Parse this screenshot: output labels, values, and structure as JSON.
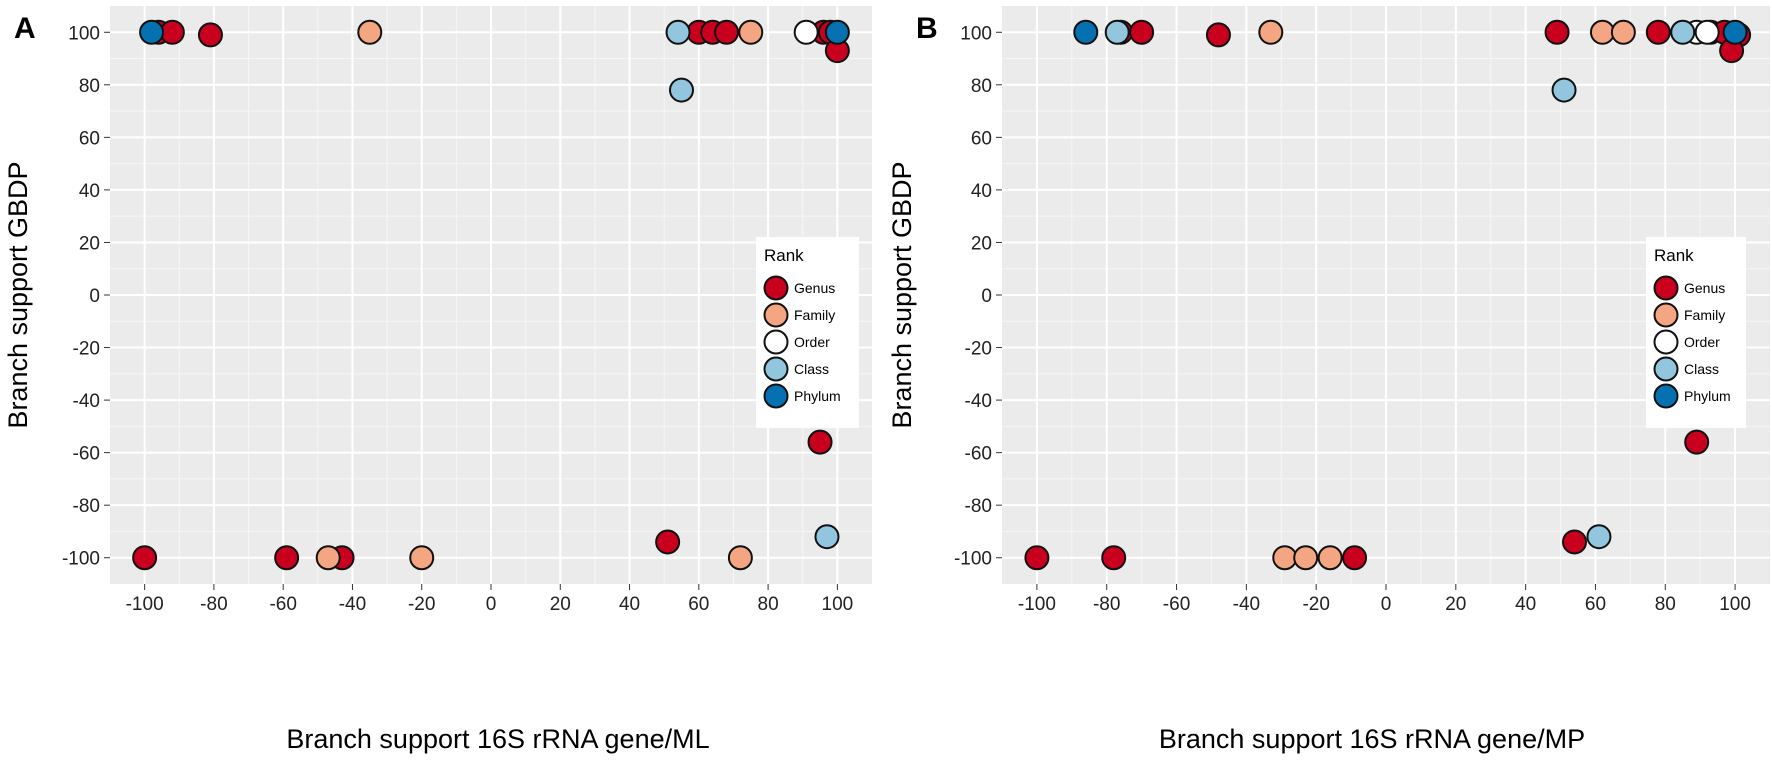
{
  "chart_data": [
    {
      "panel": "A",
      "type": "scatter",
      "xlabel": "Branch support 16S rRNA gene/ML",
      "ylabel": "Branch support GBDP",
      "xlim": [
        -110,
        110
      ],
      "ylim": [
        -110,
        110
      ],
      "x_ticks": [
        -100,
        -80,
        -60,
        -40,
        -20,
        0,
        20,
        40,
        60,
        80,
        100
      ],
      "y_ticks": [
        -100,
        -80,
        -60,
        -40,
        -20,
        0,
        20,
        40,
        60,
        80,
        100
      ],
      "grid": true,
      "legend": {
        "title": "Rank",
        "position": "right",
        "entries": [
          "Genus",
          "Family",
          "Order",
          "Class",
          "Phylum"
        ]
      },
      "series": [
        {
          "name": "Genus",
          "color": "#c8001e",
          "points": [
            [
              -96,
              100
            ],
            [
              -92,
              100
            ],
            [
              -81,
              99
            ],
            [
              60,
              100
            ],
            [
              64,
              100
            ],
            [
              68,
              100
            ],
            [
              96,
              100
            ],
            [
              98,
              100
            ],
            [
              100,
              93
            ],
            [
              95,
              -56
            ],
            [
              51,
              -94
            ],
            [
              -100,
              -100
            ],
            [
              -59,
              -100
            ],
            [
              -43,
              -100
            ]
          ]
        },
        {
          "name": "Family",
          "color": "#f4a582",
          "points": [
            [
              -35,
              100
            ],
            [
              75,
              100
            ],
            [
              -47,
              -100
            ],
            [
              -20,
              -100
            ],
            [
              72,
              -100
            ]
          ]
        },
        {
          "name": "Order",
          "color": "#ffffff",
          "points": [
            [
              91,
              100
            ]
          ]
        },
        {
          "name": "Class",
          "color": "#92c5de",
          "points": [
            [
              54,
              100
            ],
            [
              55,
              78
            ],
            [
              97,
              -92
            ]
          ]
        },
        {
          "name": "Phylum",
          "color": "#0571b0",
          "points": [
            [
              -98,
              100
            ],
            [
              100,
              100
            ]
          ]
        }
      ]
    },
    {
      "panel": "B",
      "type": "scatter",
      "xlabel": "Branch support 16S rRNA gene/MP",
      "ylabel": "Branch support GBDP",
      "xlim": [
        -110,
        110
      ],
      "ylim": [
        -110,
        110
      ],
      "x_ticks": [
        -100,
        -80,
        -60,
        -40,
        -20,
        0,
        20,
        40,
        60,
        80,
        100
      ],
      "y_ticks": [
        -100,
        -80,
        -60,
        -40,
        -20,
        0,
        20,
        40,
        60,
        80,
        100
      ],
      "grid": true,
      "legend": {
        "title": "Rank",
        "position": "right",
        "entries": [
          "Genus",
          "Family",
          "Order",
          "Class",
          "Phylum"
        ]
      },
      "series": [
        {
          "name": "Genus",
          "color": "#c8001e",
          "points": [
            [
              -76,
              100
            ],
            [
              -70,
              100
            ],
            [
              -48,
              99
            ],
            [
              49,
              100
            ],
            [
              78,
              100
            ],
            [
              93,
              100
            ],
            [
              97,
              100
            ],
            [
              101,
              99
            ],
            [
              99,
              93
            ],
            [
              89,
              -56
            ],
            [
              54,
              -94
            ],
            [
              -100,
              -100
            ],
            [
              -78,
              -100
            ],
            [
              -9,
              -100
            ]
          ]
        },
        {
          "name": "Family",
          "color": "#f4a582",
          "points": [
            [
              -33,
              100
            ],
            [
              62,
              100
            ],
            [
              68,
              100
            ],
            [
              -29,
              -100
            ],
            [
              -23,
              -100
            ],
            [
              -16,
              -100
            ]
          ]
        },
        {
          "name": "Order",
          "color": "#ffffff",
          "points": [
            [
              89,
              100
            ],
            [
              92,
              100
            ]
          ]
        },
        {
          "name": "Class",
          "color": "#92c5de",
          "points": [
            [
              -77,
              100
            ],
            [
              85,
              100
            ],
            [
              51,
              78
            ],
            [
              61,
              -92
            ]
          ]
        },
        {
          "name": "Phylum",
          "color": "#0571b0",
          "points": [
            [
              -86,
              100
            ],
            [
              100,
              100
            ]
          ]
        }
      ]
    }
  ]
}
